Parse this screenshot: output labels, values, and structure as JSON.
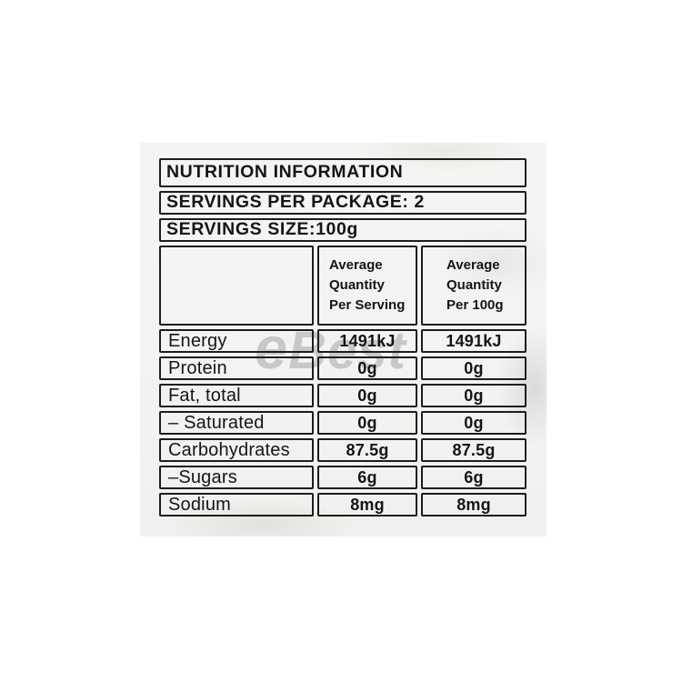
{
  "watermark": {
    "text": "eBest",
    "color": "#8f8f8f"
  },
  "colors": {
    "table_border": "#1d1d1d",
    "text": "#151515",
    "package_background": "#f3f3f1",
    "page_background": "#ffffff"
  },
  "table": {
    "title": "NUTRITION INFORMATION",
    "servings_per_package": "SERVINGS PER PACKAGE: 2",
    "serving_size": "SERVINGS SIZE:100g",
    "columns": [
      {
        "lines": [
          "Average",
          "Quantity",
          "Per Serving"
        ]
      },
      {
        "lines": [
          "Average",
          "Quantity",
          "Per 100g"
        ]
      }
    ],
    "rows": [
      {
        "label": "Energy",
        "per_serving": "1491kJ",
        "per_100g": "1491kJ"
      },
      {
        "label": "Protein",
        "per_serving": "0g",
        "per_100g": "0g"
      },
      {
        "label": "Fat, total",
        "per_serving": "0g",
        "per_100g": "0g"
      },
      {
        "label": "– Saturated",
        "per_serving": "0g",
        "per_100g": "0g"
      },
      {
        "label": "Carbohydrates",
        "per_serving": "87.5g",
        "per_100g": "87.5g"
      },
      {
        "label": "–Sugars",
        "per_serving": "6g",
        "per_100g": "6g"
      },
      {
        "label": "Sodium",
        "per_serving": "8mg",
        "per_100g": "8mg"
      }
    ]
  }
}
